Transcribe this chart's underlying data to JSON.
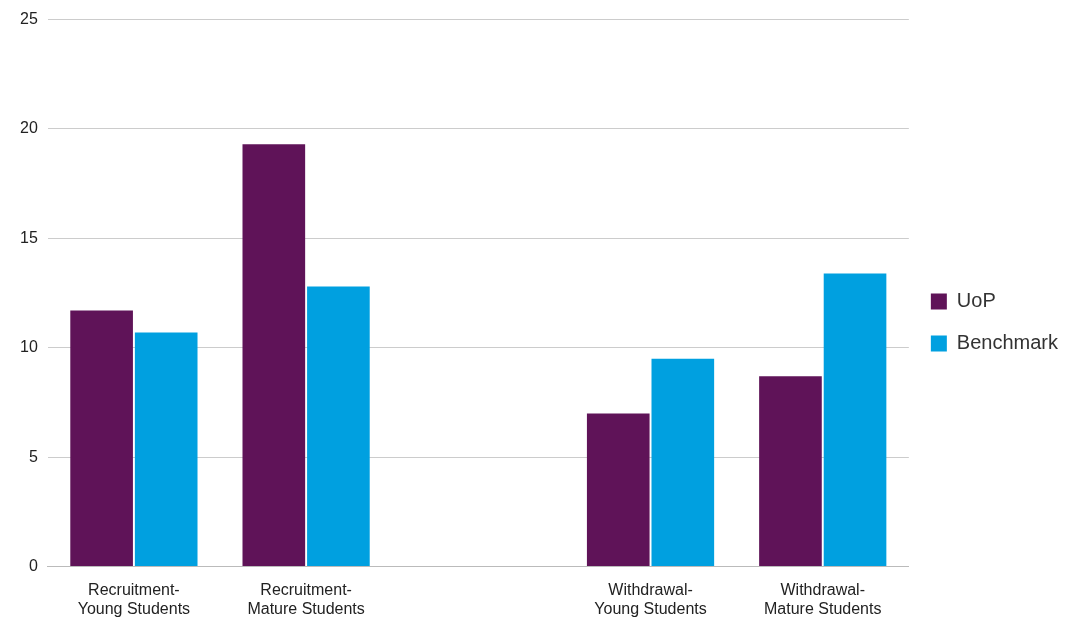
{
  "chart_data": {
    "type": "bar",
    "categories": [
      "Recruitment-Young Students",
      "Recruitment-Mature Students",
      null,
      "Withdrawal-Young Students",
      "Withdrawal-Mature Students"
    ],
    "series": [
      {
        "name": "UoP",
        "color": "#5f1358",
        "values": [
          11.7,
          19.3,
          null,
          7.0,
          8.7
        ]
      },
      {
        "name": "Benchmark",
        "color": "#00a0e0",
        "values": [
          10.7,
          12.8,
          null,
          9.5,
          13.4
        ]
      }
    ],
    "ylim": [
      0,
      25
    ],
    "yticks": [
      0,
      5,
      10,
      15,
      20,
      25
    ],
    "grid": "y",
    "legend": "right"
  }
}
